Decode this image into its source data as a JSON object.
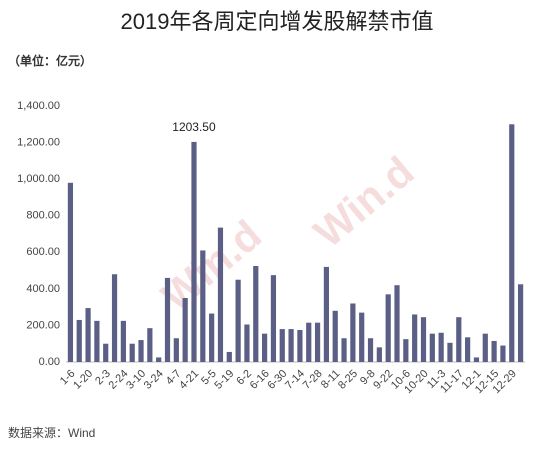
{
  "chart_data": {
    "type": "bar",
    "title": "2019年各周定向增发股解禁市值",
    "unit_label": "（单位：亿元）",
    "source": "数据来源：Wind",
    "watermark": "Win.d",
    "color": "#5b5f86",
    "categories": [
      "1-6",
      null,
      "1-20",
      null,
      "2-3",
      null,
      "2-24",
      null,
      "3-10",
      null,
      "3-24",
      null,
      "4-7",
      null,
      "4-21",
      null,
      "5-5",
      null,
      "5-19",
      null,
      "6-2",
      null,
      "6-16",
      null,
      "6-30",
      null,
      "7-14",
      null,
      "7-28",
      null,
      "8-11",
      null,
      "8-25",
      null,
      "9-8",
      null,
      "9-22",
      null,
      "10-6",
      null,
      "10-20",
      null,
      "11-3",
      null,
      "11-17",
      null,
      "12-1",
      null,
      "12-15",
      null,
      "12-29",
      null
    ],
    "values": [
      980,
      230,
      295,
      225,
      100,
      480,
      225,
      100,
      120,
      185,
      25,
      460,
      130,
      350,
      1203.5,
      610,
      265,
      735,
      55,
      450,
      205,
      525,
      155,
      475,
      180,
      180,
      175,
      215,
      215,
      520,
      280,
      130,
      320,
      270,
      130,
      80,
      370,
      420,
      125,
      260,
      245,
      155,
      160,
      105,
      245,
      135,
      25,
      155,
      115,
      90,
      1300,
      425
    ],
    "value_labels": [
      null,
      null,
      null,
      null,
      null,
      null,
      null,
      null,
      null,
      null,
      null,
      null,
      null,
      null,
      "1203.50",
      null,
      null,
      null,
      null,
      null,
      null,
      null,
      null,
      null,
      null,
      null,
      null,
      null,
      null,
      null,
      null,
      null,
      null,
      null,
      null,
      null,
      null,
      null,
      null,
      null,
      null,
      null,
      null,
      null,
      null,
      null,
      null,
      null,
      null,
      null,
      null,
      null
    ],
    "ylim": [
      0,
      1400
    ],
    "yticks": [
      {
        "value": 0,
        "label": "0.00"
      },
      {
        "value": 200,
        "label": "200.00"
      },
      {
        "value": 400,
        "label": "400.00"
      },
      {
        "value": 600,
        "label": "600.00"
      },
      {
        "value": 800,
        "label": "800.00"
      },
      {
        "value": 1000,
        "label": "1,000.00"
      },
      {
        "value": 1200,
        "label": "1,200.00"
      },
      {
        "value": 1400,
        "label": "1,400.00"
      }
    ],
    "grid": false
  }
}
